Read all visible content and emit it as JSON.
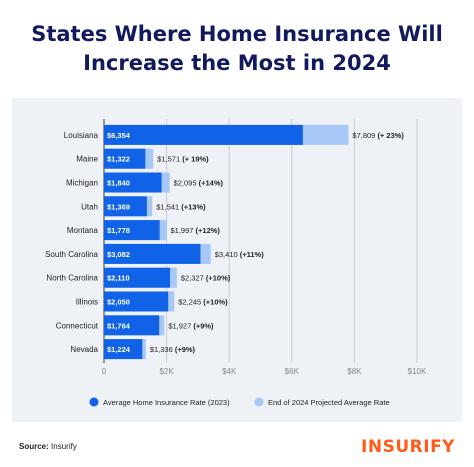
{
  "title_line1": "States Where Home Insurance Will",
  "title_line2": "Increase the Most in 2024",
  "source_label": "Source:",
  "source_value": "Insurify",
  "logo_text": "INSURIFY",
  "colors": {
    "series_2023": "#1063e6",
    "series_2024": "#a7c8f6",
    "label_text": "#222222",
    "axis_text": "#888888",
    "grid": "#c9cdd4",
    "title": "#13195e",
    "logo": "#ff5b1a"
  },
  "chart_data": {
    "type": "bar",
    "orientation": "horizontal",
    "stacked": "overlay",
    "categories": [
      "Louisiana",
      "Maine",
      "Michigan",
      "Utah",
      "Montana",
      "South Carolina",
      "North Carolina",
      "Illinois",
      "Connecticut",
      "Nevada"
    ],
    "series": [
      {
        "name": "Average Home Insurance Rate (2023)",
        "values": [
          6354,
          1322,
          1840,
          1369,
          1778,
          3082,
          2110,
          2050,
          1764,
          1224
        ],
        "labels": [
          "$6,354",
          "$1,322",
          "$1,840",
          "$1,369",
          "$1,778",
          "$3,082",
          "$2,110",
          "$2,050",
          "$1,764",
          "$1,224"
        ]
      },
      {
        "name": "End of 2024 Projected Average Rate",
        "values": [
          7809,
          1571,
          2095,
          1541,
          1997,
          3410,
          2327,
          2245,
          1927,
          1336
        ],
        "labels": [
          "$7,809",
          "$1,571",
          "$2,095",
          "$1,541",
          "$1,997",
          "$3,410",
          "$2,327",
          "$2,245",
          "$1,927",
          "$1,336"
        ]
      }
    ],
    "change_labels": [
      "(+ 23%)",
      "(+ 19%)",
      "(+14%)",
      "(+13%)",
      "(+12%)",
      "(+11%)",
      "(+10%)",
      "(+10%)",
      "(+9%)",
      "(+9%)"
    ],
    "xticks": [
      0,
      2000,
      4000,
      6000,
      8000,
      10000
    ],
    "xtick_labels": [
      "0",
      "$2K",
      "$4K",
      "$6K",
      "$8K",
      "$10K"
    ],
    "xlim": [
      0,
      10000
    ],
    "grid": true,
    "legend_position": "bottom"
  }
}
